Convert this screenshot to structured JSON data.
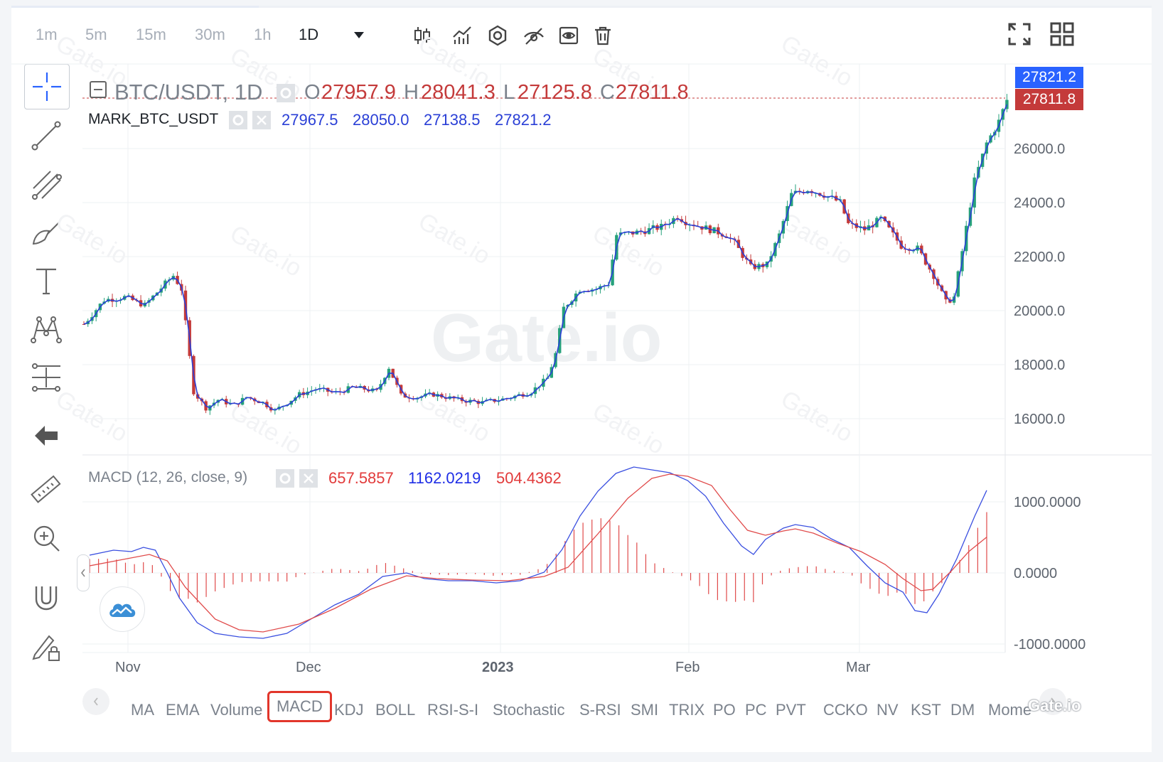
{
  "toolbar": {
    "timeframes": [
      "1m",
      "5m",
      "15m",
      "30m",
      "1h",
      "1D"
    ],
    "active_timeframe": "1D",
    "icons": [
      "candle-type-icon",
      "indicators-icon",
      "settings-hex-icon",
      "hide-drawings-icon",
      "eye-icon",
      "trash-icon",
      "fullscreen-icon",
      "layout-grid-icon"
    ]
  },
  "left_tools": [
    "crosshair-icon",
    "trend-line-icon",
    "fib-channel-icon",
    "brush-icon",
    "text-icon",
    "pattern-icon",
    "measure-icon",
    "back-arrow-icon",
    "ruler-icon",
    "zoom-in-icon",
    "magnet-icon",
    "lock-drawing-icon"
  ],
  "legend": {
    "symbol": "BTC/USDT, 1D",
    "o_label": "O",
    "o_value": "27957.9",
    "h_label": "H",
    "h_value": "28041.3",
    "l_label": "L",
    "l_value": "27125.8",
    "c_label": "C",
    "c_value": "27811.8",
    "mark_name": "MARK_BTC_USDT",
    "mark_o": "27967.5",
    "mark_h": "28050.0",
    "mark_l": "27138.5",
    "mark_c": "27821.2",
    "macd_name": "MACD (12, 26, close, 9)",
    "macd_hist": "657.5857",
    "macd_line": "1162.0219",
    "macd_signal": "504.4362"
  },
  "price_boxes": {
    "mark": "27821.2",
    "mark_color": "#2962ff",
    "last": "27811.8",
    "last_color": "#c43a3a"
  },
  "price_axis": [
    "26000.0",
    "24000.0",
    "22000.0",
    "20000.0",
    "18000.0",
    "16000.0"
  ],
  "macd_axis": [
    "1000.0000",
    "0.0000",
    "-1000.0000"
  ],
  "time_axis": [
    "Nov",
    "Dec",
    "2023",
    "Feb",
    "Mar"
  ],
  "indicators": [
    "MA",
    "EMA",
    "Volume",
    "MACD",
    "KDJ",
    "BOLL",
    "RSI-S-I",
    "Stochastic",
    "S-RSI",
    "SMI",
    "TRIX",
    "PO",
    "PC",
    "PVT",
    "CC",
    "KO",
    "NV",
    "KST",
    "DM",
    "Mome"
  ],
  "highlighted_indicator": "MACD",
  "watermark": "Gate.io",
  "colors": {
    "up": "#26a17b",
    "down": "#c43a3a",
    "ma_line": "#2a3fd6",
    "signal": "#e04a4a",
    "grid": "#eef0f3"
  },
  "chart_data": {
    "type": "candlestick",
    "title": "BTC/USDT, 1D",
    "ylim": [
      15000,
      29000
    ],
    "x_ticks": [
      "Nov",
      "Dec",
      "2023",
      "Feb",
      "Mar"
    ],
    "price_keypoints": [
      [
        0,
        19500
      ],
      [
        5,
        20400
      ],
      [
        10,
        20500
      ],
      [
        15,
        20200
      ],
      [
        20,
        21000
      ],
      [
        22,
        21300
      ],
      [
        24,
        20800
      ],
      [
        27,
        17000
      ],
      [
        30,
        16400
      ],
      [
        33,
        16700
      ],
      [
        37,
        16500
      ],
      [
        40,
        16800
      ],
      [
        44,
        16600
      ],
      [
        47,
        16300
      ],
      [
        50,
        16600
      ],
      [
        53,
        16900
      ],
      [
        57,
        17100
      ],
      [
        62,
        16950
      ],
      [
        66,
        17150
      ],
      [
        69,
        17100
      ],
      [
        72,
        17000
      ],
      [
        75,
        17900
      ],
      [
        78,
        16850
      ],
      [
        82,
        16800
      ],
      [
        86,
        16900
      ],
      [
        92,
        16700
      ],
      [
        98,
        16600
      ],
      [
        104,
        16750
      ],
      [
        110,
        17000
      ],
      [
        114,
        17500
      ],
      [
        116,
        18400
      ],
      [
        118,
        20100
      ],
      [
        122,
        20800
      ],
      [
        126,
        20800
      ],
      [
        129,
        21000
      ],
      [
        131,
        22800
      ],
      [
        136,
        22900
      ],
      [
        142,
        23100
      ],
      [
        146,
        23500
      ],
      [
        148,
        23300
      ],
      [
        152,
        23100
      ],
      [
        158,
        22800
      ],
      [
        160,
        22500
      ],
      [
        164,
        21600
      ],
      [
        168,
        21700
      ],
      [
        171,
        22800
      ],
      [
        174,
        24300
      ],
      [
        178,
        24500
      ],
      [
        182,
        24300
      ],
      [
        186,
        24000
      ],
      [
        188,
        23200
      ],
      [
        192,
        23000
      ],
      [
        196,
        23400
      ],
      [
        198,
        23000
      ],
      [
        201,
        22400
      ],
      [
        205,
        22300
      ],
      [
        209,
        21300
      ],
      [
        212,
        20300
      ],
      [
        214,
        20500
      ],
      [
        216,
        22200
      ],
      [
        219,
        24800
      ],
      [
        222,
        26200
      ],
      [
        225,
        27000
      ],
      [
        227,
        27800
      ]
    ],
    "macd": {
      "macd_line": [
        [
          0,
          250
        ],
        [
          4,
          320
        ],
        [
          7,
          300
        ],
        [
          9,
          360
        ],
        [
          11,
          320
        ],
        [
          13,
          0
        ],
        [
          15,
          -350
        ],
        [
          18,
          -700
        ],
        [
          21,
          -850
        ],
        [
          25,
          -900
        ],
        [
          29,
          -920
        ],
        [
          33,
          -850
        ],
        [
          37,
          -650
        ],
        [
          41,
          -450
        ],
        [
          45,
          -300
        ],
        [
          49,
          -50
        ],
        [
          53,
          0
        ],
        [
          56,
          -80
        ],
        [
          60,
          -110
        ],
        [
          64,
          -110
        ],
        [
          68,
          -140
        ],
        [
          72,
          -110
        ],
        [
          76,
          10
        ],
        [
          79,
          330
        ],
        [
          82,
          800
        ],
        [
          85,
          1150
        ],
        [
          88,
          1400
        ],
        [
          91,
          1490
        ],
        [
          94,
          1450
        ],
        [
          97,
          1410
        ],
        [
          100,
          1300
        ],
        [
          103,
          1080
        ],
        [
          106,
          700
        ],
        [
          109,
          380
        ],
        [
          111,
          260
        ],
        [
          113,
          470
        ],
        [
          116,
          630
        ],
        [
          118,
          680
        ],
        [
          121,
          640
        ],
        [
          124,
          480
        ],
        [
          127,
          360
        ],
        [
          130,
          100
        ],
        [
          133,
          -140
        ],
        [
          136,
          -270
        ],
        [
          138,
          -530
        ],
        [
          140,
          -560
        ],
        [
          142,
          -300
        ],
        [
          145,
          200
        ],
        [
          148,
          800
        ],
        [
          150,
          1162
        ]
      ],
      "signal_line": [
        [
          0,
          100
        ],
        [
          5,
          180
        ],
        [
          10,
          260
        ],
        [
          13,
          170
        ],
        [
          16,
          -200
        ],
        [
          21,
          -650
        ],
        [
          25,
          -800
        ],
        [
          29,
          -830
        ],
        [
          35,
          -720
        ],
        [
          41,
          -500
        ],
        [
          47,
          -230
        ],
        [
          53,
          -40
        ],
        [
          58,
          -80
        ],
        [
          64,
          -100
        ],
        [
          70,
          -110
        ],
        [
          76,
          -50
        ],
        [
          80,
          80
        ],
        [
          85,
          550
        ],
        [
          90,
          1050
        ],
        [
          94,
          1330
        ],
        [
          97,
          1390
        ],
        [
          100,
          1360
        ],
        [
          104,
          1230
        ],
        [
          107,
          900
        ],
        [
          110,
          600
        ],
        [
          113,
          530
        ],
        [
          116,
          590
        ],
        [
          118,
          620
        ],
        [
          121,
          560
        ],
        [
          125,
          420
        ],
        [
          129,
          300
        ],
        [
          133,
          120
        ],
        [
          136,
          -80
        ],
        [
          139,
          -250
        ],
        [
          141,
          -230
        ],
        [
          144,
          20
        ],
        [
          147,
          300
        ],
        [
          150,
          504
        ]
      ],
      "histogram_label": "657.5857",
      "ylim": [
        -1050,
        1500
      ]
    }
  }
}
